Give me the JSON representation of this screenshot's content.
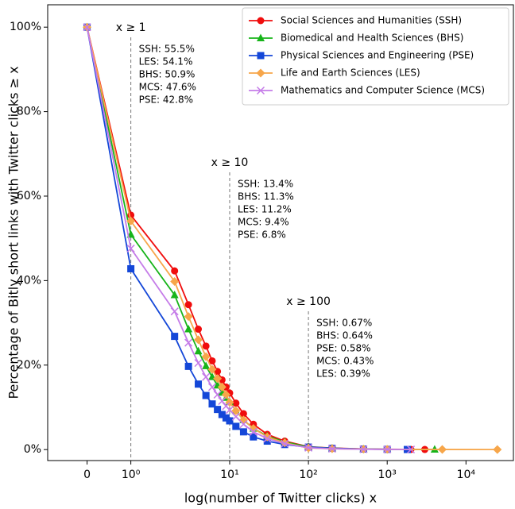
{
  "chart_data": {
    "type": "line",
    "xlabel": "log(number of Twitter clicks) x",
    "ylabel": "Percentage of Bitly short links with Twitter clicks ≥ x",
    "xscale": "symlog",
    "linthresh": 2,
    "xlim": [
      -0.9,
      40000
    ],
    "ylim": [
      -2.6,
      105.3
    ],
    "xticks": [
      0,
      {
        "value": 1,
        "label": "10⁰"
      },
      {
        "value": 10,
        "label": "10¹"
      },
      {
        "value": 100,
        "label": "10²"
      },
      {
        "value": 1000,
        "label": "10³"
      },
      {
        "value": 10000,
        "label": "10⁴"
      }
    ],
    "yticks": [
      {
        "value": 0,
        "label": "0%"
      },
      {
        "value": 20,
        "label": "20%"
      },
      {
        "value": 40,
        "label": "40%"
      },
      {
        "value": 60,
        "label": "60%"
      },
      {
        "value": 80,
        "label": "80%"
      },
      {
        "value": 100,
        "label": "100%"
      }
    ],
    "legend": "upper right",
    "series": [
      {
        "name": "Social Sciences and Humanities (SSH)",
        "color": "#f00d0d",
        "marker": "circle",
        "x": [
          0,
          1,
          2,
          3,
          4,
          5,
          6,
          7,
          8,
          9,
          10,
          12,
          15,
          20,
          30,
          50,
          100,
          200,
          500,
          1000,
          2000,
          3000
        ],
        "y": [
          100,
          55.5,
          42.3,
          34.3,
          28.5,
          24.5,
          21,
          18.5,
          16.5,
          14.8,
          13.4,
          11,
          8.5,
          6,
          3.6,
          2,
          0.67,
          0.35,
          0.15,
          0.08,
          0.03,
          0.02
        ]
      },
      {
        "name": "Biomedical and Health Sciences (BHS)",
        "color": "#17b41a",
        "marker": "triangle",
        "x": [
          0,
          1,
          2,
          3,
          4,
          5,
          6,
          7,
          8,
          9,
          10,
          12,
          15,
          20,
          30,
          50,
          100,
          200,
          500,
          1000,
          4000
        ],
        "y": [
          100,
          50.9,
          36.6,
          28.5,
          23.3,
          19.8,
          17.2,
          15.2,
          13.5,
          12.3,
          11.3,
          9.2,
          7,
          5,
          3.2,
          1.8,
          0.64,
          0.3,
          0.12,
          0.06,
          0.02
        ]
      },
      {
        "name": "Physical Sciences and Engineering (PSE)",
        "color": "#1447d8",
        "marker": "square",
        "x": [
          0,
          1,
          2,
          3,
          4,
          5,
          6,
          7,
          8,
          9,
          10,
          12,
          15,
          20,
          30,
          50,
          100,
          200,
          500,
          1000,
          1800
        ],
        "y": [
          100,
          42.8,
          26.8,
          19.7,
          15.5,
          12.8,
          10.8,
          9.5,
          8.3,
          7.5,
          6.8,
          5.5,
          4.2,
          3,
          2,
          1.2,
          0.58,
          0.3,
          0.12,
          0.05,
          0.02
        ]
      },
      {
        "name": "Life and Earth Sciences (LES)",
        "color": "#f7a64a",
        "marker": "diamond",
        "x": [
          0,
          1,
          2,
          3,
          4,
          5,
          6,
          7,
          8,
          9,
          10,
          12,
          15,
          20,
          30,
          50,
          100,
          200,
          500,
          1000,
          5000,
          25000
        ],
        "y": [
          100,
          54.1,
          39.8,
          31.5,
          26,
          22,
          19,
          16.8,
          14.8,
          13,
          11.2,
          9.2,
          7,
          5,
          3,
          1.6,
          0.39,
          0.2,
          0.1,
          0.06,
          0.02,
          0.01
        ]
      },
      {
        "name": "Mathematics and Computer Science (MCS)",
        "color": "#c57ce8",
        "marker": "x",
        "x": [
          0,
          1,
          2,
          3,
          4,
          5,
          6,
          7,
          8,
          9,
          10,
          12,
          15,
          20,
          30,
          50,
          100,
          200,
          500,
          1000,
          2000
        ],
        "y": [
          100,
          47.6,
          32.7,
          25.3,
          20.5,
          17.2,
          14.8,
          13,
          11.5,
          10.3,
          9.4,
          7.8,
          6,
          4.2,
          2.6,
          1.4,
          0.43,
          0.2,
          0.08,
          0.04,
          0.02
        ]
      }
    ],
    "annotations": [
      {
        "x": 1,
        "label": "x ≥ 1",
        "lines": [
          {
            "text": "SSH: 55.5%",
            "color": "#f00d0d"
          },
          {
            "text": "LES: 54.1%",
            "color": "#f7a64a"
          },
          {
            "text": "BHS: 50.9%",
            "color": "#17b41a"
          },
          {
            "text": "MCS: 47.6%",
            "color": "#c57ce8"
          },
          {
            "text": "PSE: 42.8%",
            "color": "#1447d8"
          }
        ]
      },
      {
        "x": 10,
        "label": "x ≥ 10",
        "lines": [
          {
            "text": "SSH: 13.4%",
            "color": "#f00d0d"
          },
          {
            "text": "BHS: 11.3%",
            "color": "#17b41a"
          },
          {
            "text": "LES: 11.2%",
            "color": "#f7a64a"
          },
          {
            "text": "MCS: 9.4%",
            "color": "#c57ce8"
          },
          {
            "text": "PSE: 6.8%",
            "color": "#1447d8"
          }
        ]
      },
      {
        "x": 100,
        "label": "x ≥ 100",
        "lines": [
          {
            "text": "SSH: 0.67%",
            "color": "#f00d0d"
          },
          {
            "text": "BHS: 0.64%",
            "color": "#17b41a"
          },
          {
            "text": "PSE: 0.58%",
            "color": "#1447d8"
          },
          {
            "text": "MCS: 0.43%",
            "color": "#c57ce8"
          },
          {
            "text": "LES: 0.39%",
            "color": "#f7a64a"
          }
        ]
      }
    ]
  }
}
